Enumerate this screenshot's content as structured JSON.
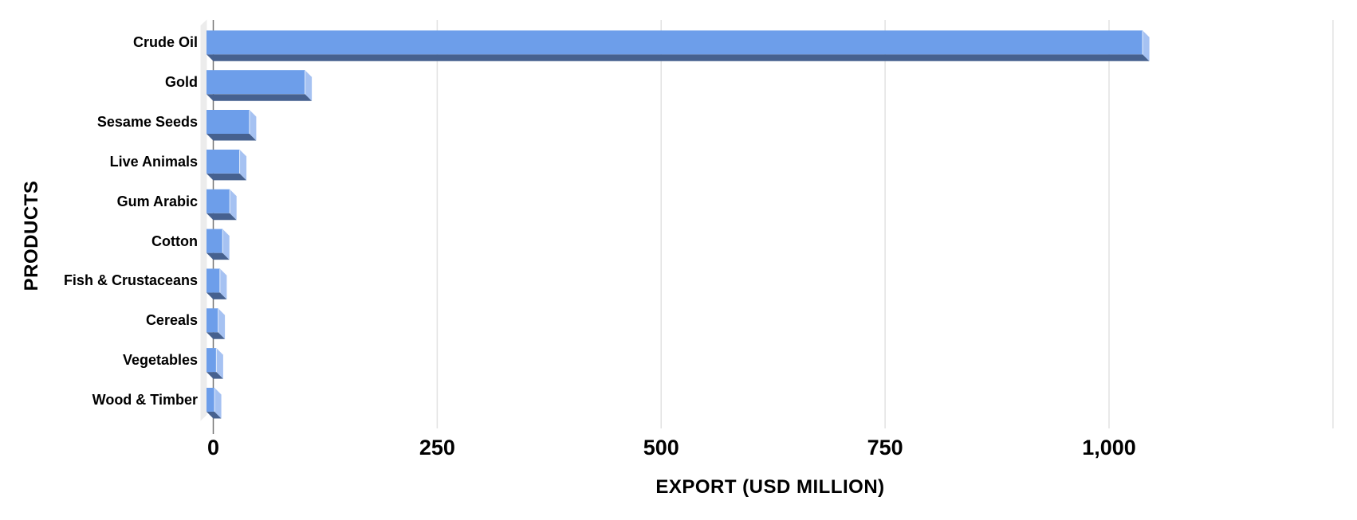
{
  "chart_data": {
    "type": "bar",
    "orientation": "horizontal",
    "style": "3d",
    "title": "",
    "xlabel": "EXPORT (USD MILLION)",
    "ylabel": "PRODUCTS",
    "categories": [
      "Crude Oil",
      "Gold",
      "Sesame Seeds",
      "Live Animals",
      "Gum Arabic",
      "Cotton",
      "Fish & Crustaceans",
      "Cereals",
      "Vegetables",
      "Wood & Timber"
    ],
    "values": [
      1045,
      110,
      48,
      37,
      26,
      18,
      15,
      13,
      11,
      9
    ],
    "xlim": [
      0,
      1250
    ],
    "xticks": [
      {
        "value": 0,
        "label": "0"
      },
      {
        "value": 250,
        "label": "250"
      },
      {
        "value": 500,
        "label": "500"
      },
      {
        "value": 750,
        "label": "750"
      },
      {
        "value": 1000,
        "label": "1,000"
      }
    ],
    "grid_values": [
      0,
      250,
      500,
      750,
      1000,
      1250
    ],
    "grid": true,
    "legend": false,
    "colors": {
      "bar_face": "#6D9EEA",
      "bar_side": "#A6C2F2",
      "bar_bottom": "#46618F",
      "bar_seam": "#E4EDFB",
      "wall": "#ECECEC",
      "axis_line": "#757575",
      "gridline": "#E2E2E2",
      "text": "#000000",
      "background": "#FFFFFF"
    }
  }
}
